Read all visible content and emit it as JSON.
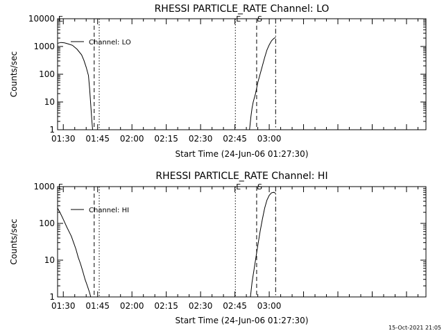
{
  "footer": {
    "timestamp": "15-Oct-2021 21:05"
  },
  "chart_data": [
    {
      "type": "line",
      "title": "RHESSI PARTICLE_RATE Channel: LO",
      "xlabel": "Start Time (24-Jun-06 01:27:30)",
      "ylabel": "Counts/sec",
      "yscale": "log",
      "ylim": [
        1,
        10000
      ],
      "y_ticks": [
        "1",
        "10",
        "100",
        "1000",
        "10000"
      ],
      "x_range_minutes": [
        27.5,
        188.5
      ],
      "x_ticks": [
        {
          "label": "01:30",
          "min": 30
        },
        {
          "label": "01:45",
          "min": 45
        },
        {
          "label": "02:00",
          "min": 60
        },
        {
          "label": "02:15",
          "min": 75
        },
        {
          "label": "02:30",
          "min": 90
        },
        {
          "label": "02:45",
          "min": 105
        },
        {
          "label": "03:00",
          "min": 120
        }
      ],
      "legend": {
        "label": "Channel: LO",
        "placement": "top-left"
      },
      "markers": [
        {
          "min": 27.5,
          "style": "solid",
          "label": "E"
        },
        {
          "min": 43.5,
          "style": "dashed",
          "label": ""
        },
        {
          "min": 45.7,
          "style": "dotted",
          "label": ""
        },
        {
          "min": 105.2,
          "style": "dotted",
          "label": "E"
        },
        {
          "min": 114.5,
          "style": "dashed",
          "label": "S"
        },
        {
          "min": 122.8,
          "style": "dashdot",
          "label": ""
        }
      ],
      "series": [
        {
          "segments": [
            [
              [
                27.5,
                1300
              ],
              [
                29,
                1400
              ],
              [
                30.5,
                1350
              ],
              [
                32,
                1250
              ],
              [
                34,
                1100
              ],
              [
                36,
                800
              ],
              [
                38,
                500
              ],
              [
                39,
                320
              ],
              [
                40,
                180
              ],
              [
                41,
                90
              ],
              [
                41.5,
                30
              ],
              [
                42,
                8
              ],
              [
                42.5,
                2
              ],
              [
                42.8,
                1
              ]
            ],
            [
              [
                111.4,
                1
              ],
              [
                112,
                3
              ],
              [
                112.5,
                6
              ],
              [
                113,
                10
              ],
              [
                114,
                20
              ],
              [
                115,
                50
              ],
              [
                116,
                100
              ],
              [
                117,
                200
              ],
              [
                118,
                400
              ],
              [
                119,
                750
              ],
              [
                120,
                1150
              ],
              [
                121,
                1600
              ],
              [
                122,
                1950
              ],
              [
                122.8,
                2100
              ]
            ]
          ]
        }
      ]
    },
    {
      "type": "line",
      "title": "RHESSI PARTICLE_RATE Channel: HI",
      "xlabel": "Start Time (24-Jun-06 01:27:30)",
      "ylabel": "Counts/sec",
      "yscale": "log",
      "ylim": [
        1,
        1000
      ],
      "y_ticks": [
        "1",
        "10",
        "100",
        "1000"
      ],
      "x_range_minutes": [
        27.5,
        188.5
      ],
      "x_ticks": [
        {
          "label": "01:30",
          "min": 30
        },
        {
          "label": "01:45",
          "min": 45
        },
        {
          "label": "02:00",
          "min": 60
        },
        {
          "label": "02:15",
          "min": 75
        },
        {
          "label": "02:30",
          "min": 90
        },
        {
          "label": "02:45",
          "min": 105
        },
        {
          "label": "03:00",
          "min": 120
        }
      ],
      "legend": {
        "label": "Channel: HI",
        "placement": "top-left"
      },
      "markers": [
        {
          "min": 27.5,
          "style": "solid",
          "label": "E"
        },
        {
          "min": 43.5,
          "style": "dashed",
          "label": ""
        },
        {
          "min": 45.7,
          "style": "dotted",
          "label": ""
        },
        {
          "min": 105.2,
          "style": "dotted",
          "label": "E"
        },
        {
          "min": 114.5,
          "style": "dashed",
          "label": "S"
        },
        {
          "min": 122.8,
          "style": "dashdot",
          "label": ""
        }
      ],
      "series": [
        {
          "segments": [
            [
              [
                27.5,
                260
              ],
              [
                28.5,
                200
              ],
              [
                29.5,
                150
              ],
              [
                30.5,
                110
              ],
              [
                31.5,
                80
              ],
              [
                32.5,
                60
              ],
              [
                33.5,
                45
              ],
              [
                34.5,
                30
              ],
              [
                35.5,
                20
              ],
              [
                36.5,
                12
              ],
              [
                37.5,
                8
              ],
              [
                38.5,
                5
              ],
              [
                39.5,
                3
              ],
              [
                40.5,
                2
              ],
              [
                41.5,
                1.3
              ],
              [
                42,
                1
              ]
            ],
            [
              [
                111.8,
                1
              ],
              [
                112.5,
                2.5
              ],
              [
                113,
                4
              ],
              [
                114,
                10
              ],
              [
                115,
                25
              ],
              [
                116,
                60
              ],
              [
                117,
                130
              ],
              [
                118,
                260
              ],
              [
                119,
                430
              ],
              [
                120,
                580
              ],
              [
                121,
                680
              ],
              [
                122,
                700
              ],
              [
                122.8,
                660
              ]
            ]
          ]
        }
      ]
    }
  ]
}
